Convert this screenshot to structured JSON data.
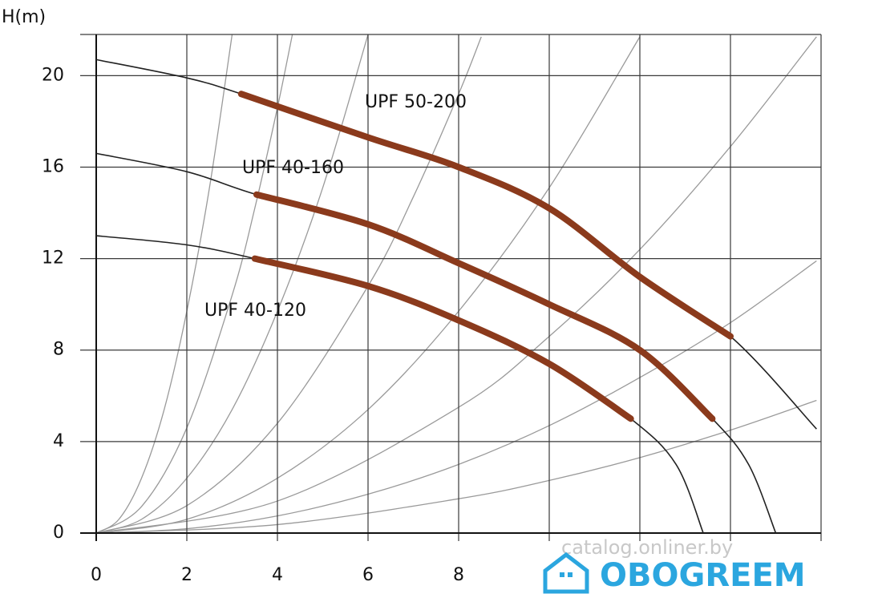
{
  "chart_data": {
    "type": "line",
    "y_label": "H(m)",
    "xlim": [
      0,
      16
    ],
    "ylim": [
      0,
      21.8
    ],
    "xticks": [
      0,
      2,
      4,
      6,
      8,
      {
        "value": 10,
        "label": null
      },
      {
        "value": 12,
        "label": null
      },
      {
        "value": 14,
        "label": null
      },
      {
        "value": 16,
        "label": null
      }
    ],
    "yticks": [
      0,
      4,
      8,
      12,
      16,
      20
    ],
    "grid": true,
    "series": [
      {
        "name": "UPF 50-200",
        "color": "#8b3a1c",
        "x": [
          3.2,
          6,
          8,
          10,
          12,
          14
        ],
        "values": [
          19.2,
          17.3,
          16.0,
          14.2,
          11.2,
          8.6
        ],
        "curve": {
          "color": "#222222",
          "x": [
            0,
            2,
            3.2,
            6,
            8,
            10,
            12,
            14,
            15.9
          ],
          "values": [
            20.7,
            19.9,
            19.2,
            17.3,
            16.0,
            14.2,
            11.2,
            8.6,
            4.55
          ]
        }
      },
      {
        "name": "UPF 40-160",
        "color": "#8b3a1c",
        "x": [
          3.54,
          6,
          8,
          10,
          12,
          13.6
        ],
        "values": [
          14.8,
          13.5,
          11.8,
          10.0,
          8.0,
          5.0
        ],
        "curve": {
          "color": "#222222",
          "x": [
            0,
            2,
            3.54,
            6,
            8,
            10,
            12,
            13.6,
            14.4,
            15.0
          ],
          "values": [
            16.6,
            15.8,
            14.8,
            13.5,
            11.8,
            10.0,
            8.0,
            5.0,
            3,
            0
          ]
        }
      },
      {
        "name": "UPF 40-120",
        "color": "#8b3a1c",
        "x": [
          3.5,
          6,
          8,
          10,
          11.8
        ],
        "values": [
          12.0,
          10.8,
          9.3,
          7.4,
          5.0
        ],
        "curve": {
          "color": "#222222",
          "x": [
            0,
            2,
            3.5,
            6,
            8,
            10,
            11.8,
            12.8,
            13.4
          ],
          "values": [
            13.0,
            12.6,
            12.0,
            10.8,
            9.3,
            7.4,
            5.0,
            3,
            0
          ]
        }
      }
    ],
    "system_curves": {
      "color": "#9a9a9a",
      "lines": [
        {
          "x": [
            0,
            0.5,
            1,
            1.5,
            2,
            2.5,
            3
          ],
          "values": [
            0,
            0.6,
            2.4,
            5.4,
            9.7,
            15.1,
            21.8
          ]
        },
        {
          "x": [
            0,
            1,
            2,
            3,
            3.5,
            4,
            4.33
          ],
          "values": [
            0,
            1.16,
            4.6,
            10.4,
            14.2,
            18.6,
            21.8
          ]
        },
        {
          "x": [
            0,
            1,
            2,
            3,
            4,
            5,
            6
          ],
          "values": [
            0,
            0.6,
            2.4,
            5.4,
            9.7,
            15.1,
            21.8
          ]
        },
        {
          "x": [
            0,
            2,
            4,
            6,
            7,
            8,
            8.5
          ],
          "values": [
            0,
            1.2,
            4.8,
            10.8,
            14.7,
            19.2,
            21.7
          ]
        },
        {
          "x": [
            0,
            2,
            4,
            6,
            8,
            10,
            12
          ],
          "values": [
            0,
            0.6,
            2.4,
            5.4,
            9.7,
            15.1,
            21.7
          ]
        },
        {
          "x": [
            0,
            4,
            8,
            10,
            12,
            14,
            15.9
          ],
          "values": [
            0,
            1.4,
            5.5,
            8.6,
            12.4,
            16.9,
            21.7
          ]
        },
        {
          "x": [
            0,
            2,
            4,
            6,
            8,
            10,
            12,
            14,
            15.9
          ],
          "values": [
            0,
            0.19,
            0.75,
            1.7,
            3.0,
            4.7,
            6.8,
            9.2,
            11.9
          ]
        },
        {
          "x": [
            0,
            4,
            8,
            10,
            12,
            14,
            15.9
          ],
          "values": [
            0,
            0.37,
            1.5,
            2.3,
            3.3,
            4.5,
            5.8
          ]
        }
      ]
    }
  },
  "watermark": {
    "site": "catalog.onliner.by",
    "logo": "OBOGREEM"
  }
}
